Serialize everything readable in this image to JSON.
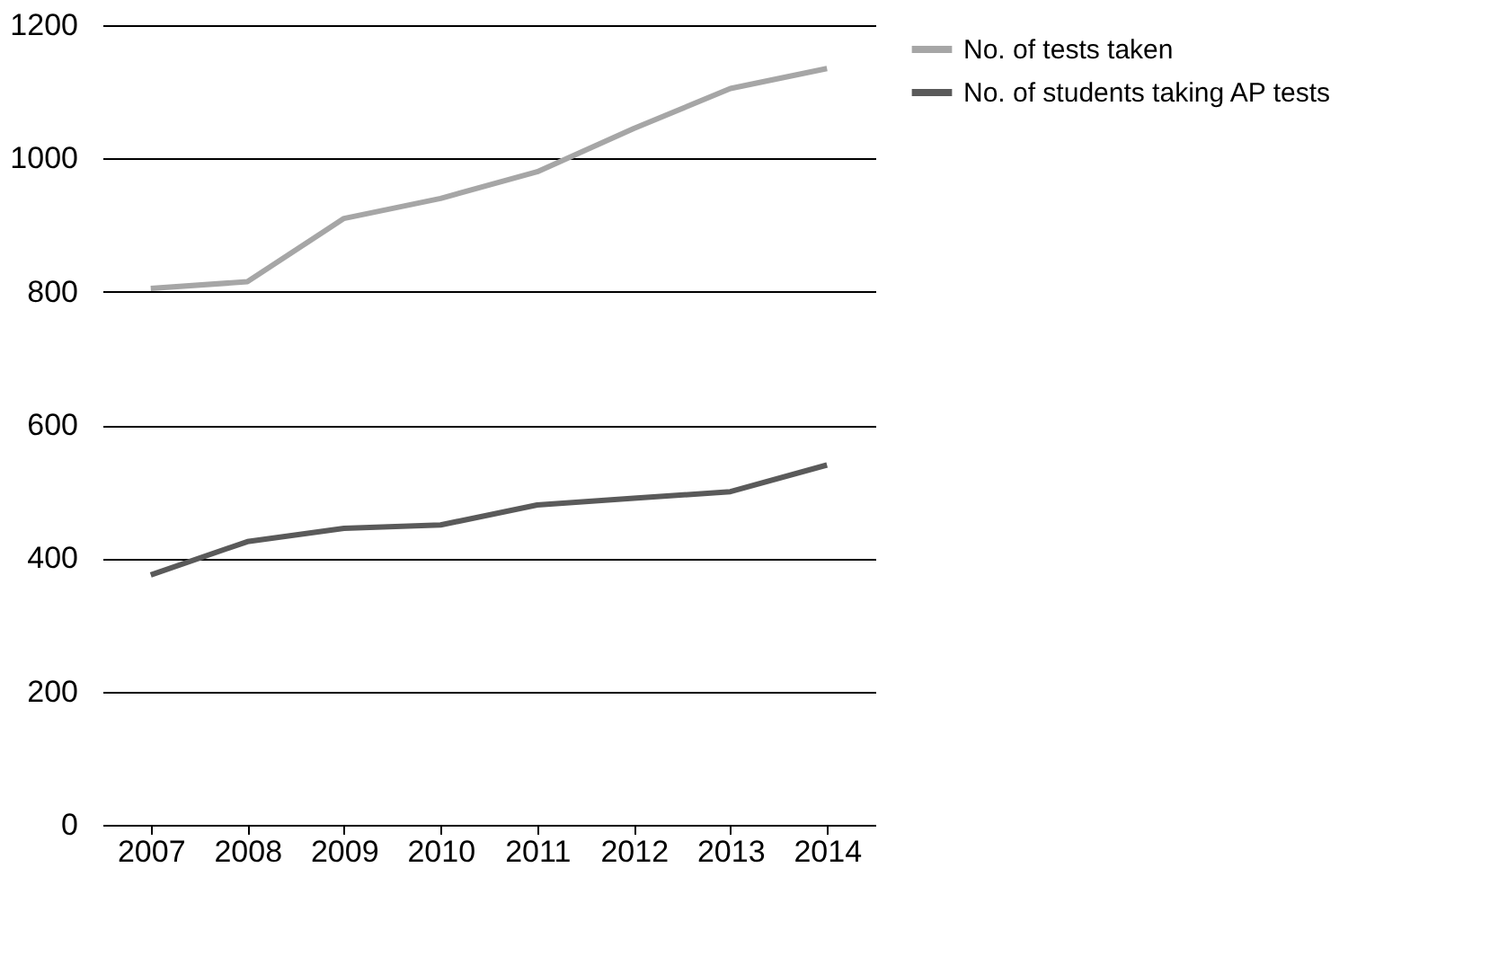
{
  "chart_data": {
    "type": "line",
    "categories": [
      "2007",
      "2008",
      "2009",
      "2010",
      "2011",
      "2012",
      "2013",
      "2014"
    ],
    "series": [
      {
        "name": "No. of tests taken",
        "color": "#a6a6a6",
        "values": [
          805,
          815,
          910,
          940,
          980,
          1045,
          1105,
          1135
        ]
      },
      {
        "name": "No. of students taking AP tests",
        "color": "#5a5a5a",
        "values": [
          375,
          425,
          445,
          450,
          480,
          490,
          500,
          540
        ]
      }
    ],
    "ylim": [
      0,
      1200
    ],
    "yticks": [
      0,
      200,
      400,
      600,
      800,
      1000,
      1200
    ],
    "grid": "y",
    "legend": "right",
    "marker": "none",
    "line_style": "solid"
  }
}
